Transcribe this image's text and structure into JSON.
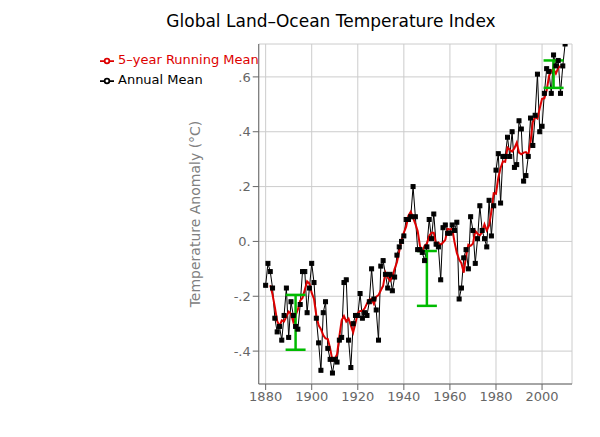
{
  "chart_data": {
    "type": "line",
    "title": "Global Land–Ocean Temperature Index",
    "y_label": "Temperature Anomaly (°C)",
    "x": [
      1880,
      1881,
      1882,
      1883,
      1884,
      1885,
      1886,
      1887,
      1888,
      1889,
      1890,
      1891,
      1892,
      1893,
      1894,
      1895,
      1896,
      1897,
      1898,
      1899,
      1900,
      1901,
      1902,
      1903,
      1904,
      1905,
      1906,
      1907,
      1908,
      1909,
      1910,
      1911,
      1912,
      1913,
      1914,
      1915,
      1916,
      1917,
      1918,
      1919,
      1920,
      1921,
      1922,
      1923,
      1924,
      1925,
      1926,
      1927,
      1928,
      1929,
      1930,
      1931,
      1932,
      1933,
      1934,
      1935,
      1936,
      1937,
      1938,
      1939,
      1940,
      1941,
      1942,
      1943,
      1944,
      1945,
      1946,
      1947,
      1948,
      1949,
      1950,
      1951,
      1952,
      1953,
      1954,
      1955,
      1956,
      1957,
      1958,
      1959,
      1960,
      1961,
      1962,
      1963,
      1964,
      1965,
      1966,
      1967,
      1968,
      1969,
      1970,
      1971,
      1972,
      1973,
      1974,
      1975,
      1976,
      1977,
      1978,
      1979,
      1980,
      1981,
      1982,
      1983,
      1984,
      1985,
      1986,
      1987,
      1988,
      1989,
      1990,
      1991,
      1992,
      1993,
      1994,
      1995,
      1996,
      1997,
      1998,
      1999,
      2000,
      2001,
      2002,
      2003,
      2004,
      2005,
      2006,
      2007,
      2008,
      2009,
      2010
    ],
    "series": [
      {
        "name": "Annual Mean",
        "color": "#000000",
        "marker": "square",
        "line_style": "solid",
        "values": [
          -0.16,
          -0.08,
          -0.11,
          -0.17,
          -0.28,
          -0.33,
          -0.31,
          -0.36,
          -0.27,
          -0.17,
          -0.35,
          -0.22,
          -0.27,
          -0.31,
          -0.32,
          -0.23,
          -0.11,
          -0.11,
          -0.26,
          -0.17,
          -0.08,
          -0.15,
          -0.28,
          -0.37,
          -0.47,
          -0.26,
          -0.22,
          -0.39,
          -0.43,
          -0.48,
          -0.43,
          -0.44,
          -0.36,
          -0.35,
          -0.15,
          -0.14,
          -0.36,
          -0.46,
          -0.3,
          -0.27,
          -0.27,
          -0.19,
          -0.28,
          -0.26,
          -0.27,
          -0.22,
          -0.1,
          -0.21,
          -0.25,
          -0.36,
          -0.09,
          -0.07,
          -0.12,
          -0.17,
          -0.12,
          -0.18,
          -0.13,
          -0.05,
          -0.02,
          0.0,
          0.02,
          0.08,
          0.08,
          0.09,
          0.2,
          0.09,
          -0.03,
          -0.03,
          -0.04,
          -0.07,
          -0.02,
          0.08,
          0.01,
          0.1,
          -0.01,
          -0.02,
          -0.14,
          0.05,
          0.06,
          0.03,
          0.03,
          0.06,
          0.04,
          0.07,
          -0.21,
          -0.17,
          -0.06,
          -0.03,
          -0.1,
          0.09,
          0.04,
          -0.08,
          0.01,
          0.13,
          0.04,
          0.01,
          -0.02,
          0.15,
          0.02,
          0.13,
          0.26,
          0.32,
          0.14,
          0.31,
          0.31,
          0.38,
          0.31,
          0.4,
          0.27,
          0.28,
          0.44,
          0.41,
          0.22,
          0.24,
          0.31,
          0.45,
          0.35,
          0.46,
          0.61,
          0.4,
          0.42,
          0.54,
          0.63,
          0.62,
          0.54,
          0.68,
          0.64,
          0.66,
          0.54,
          0.64,
          0.72
        ]
      },
      {
        "name": "5–year Running Mean",
        "color": "#dd0000",
        "marker": "none",
        "line_style": "solid",
        "values": [
          null,
          null,
          -0.16,
          -0.194,
          -0.24,
          -0.29,
          -0.31,
          -0.288,
          -0.292,
          -0.274,
          -0.256,
          -0.264,
          -0.294,
          -0.27,
          -0.248,
          -0.216,
          -0.206,
          -0.176,
          -0.146,
          -0.154,
          -0.188,
          -0.21,
          -0.27,
          -0.306,
          -0.32,
          -0.342,
          -0.354,
          -0.356,
          -0.39,
          -0.434,
          -0.428,
          -0.412,
          -0.346,
          -0.288,
          -0.272,
          -0.292,
          -0.282,
          -0.306,
          -0.332,
          -0.298,
          -0.262,
          -0.254,
          -0.254,
          -0.244,
          -0.226,
          -0.212,
          -0.21,
          -0.228,
          -0.202,
          -0.196,
          -0.178,
          -0.162,
          -0.114,
          -0.132,
          -0.144,
          -0.13,
          -0.1,
          -0.076,
          -0.036,
          0.006,
          0.032,
          0.054,
          0.094,
          0.108,
          0.086,
          0.064,
          0.038,
          -0.016,
          -0.038,
          -0.016,
          -0.008,
          0.02,
          0.032,
          0.032,
          -0.012,
          -0.004,
          -0.012,
          -0.004,
          0.006,
          0.046,
          0.044,
          0.046,
          -0.002,
          -0.042,
          -0.066,
          -0.08,
          -0.114,
          -0.054,
          -0.012,
          -0.016,
          -0.008,
          0.038,
          0.028,
          0.022,
          0.034,
          0.062,
          0.04,
          0.058,
          0.108,
          0.176,
          0.174,
          0.232,
          0.268,
          0.292,
          0.29,
          0.342,
          0.334,
          0.328,
          0.34,
          0.36,
          0.324,
          0.318,
          0.324,
          0.326,
          0.314,
          0.362,
          0.436,
          0.454,
          0.448,
          0.486,
          0.52,
          0.522,
          0.55,
          0.602,
          0.622,
          0.628,
          0.612,
          0.632,
          0.64,
          null,
          null
        ]
      }
    ],
    "error_bars": [
      {
        "x": 1893,
        "center": -0.295,
        "half_height": 0.1,
        "color": "#00bb00"
      },
      {
        "x": 1950,
        "center": -0.135,
        "half_height": 0.1,
        "color": "#00bb00"
      },
      {
        "x": 2005,
        "center": 0.61,
        "half_height": 0.05,
        "color": "#00bb00"
      }
    ],
    "xlim": [
      1877,
      2013
    ],
    "xticks": [
      1880,
      1900,
      1920,
      1940,
      1960,
      1980,
      2000
    ],
    "ylim": [
      -0.52,
      0.72
    ],
    "yticks": [
      {
        "value": -0.4,
        "label": "-.4"
      },
      {
        "value": -0.2,
        "label": "-.2"
      },
      {
        "value": 0,
        "label": "0."
      },
      {
        "value": 0.2,
        "label": ".2"
      },
      {
        "value": 0.4,
        "label": ".4"
      },
      {
        "value": 0.6,
        "label": ".6"
      }
    ],
    "grid": true,
    "legend": "upper left"
  }
}
